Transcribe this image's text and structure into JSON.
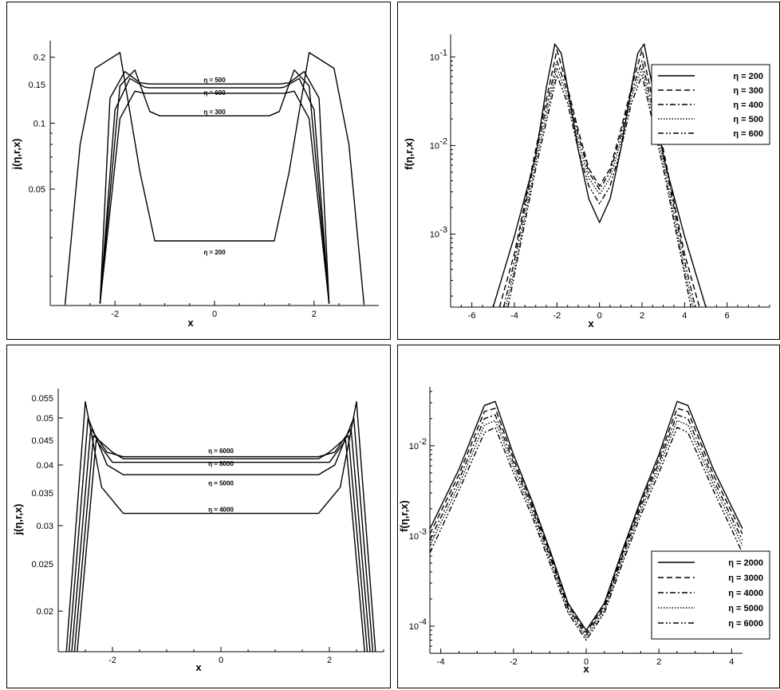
{
  "chart_data": [
    {
      "type": "line",
      "xlabel": "x",
      "ylabel": "j(η,r,x)",
      "xlim": [
        -3.3,
        3.3
      ],
      "ylim": [
        0.0147,
        0.238
      ],
      "yscale": "log",
      "xticks": [
        -2,
        0,
        2
      ],
      "xtick_labels": [
        "-2",
        "0",
        "2"
      ],
      "yticks": [
        0.05,
        0.1,
        0.15,
        0.2
      ],
      "ytick_labels": [
        "0.05",
        "0.1",
        "0.15",
        "0.2"
      ],
      "annotations": [
        {
          "text": "η = 500",
          "x": 0.0,
          "y": 0.158
        },
        {
          "text": "η = 600",
          "x": 0.0,
          "y": 0.138
        },
        {
          "text": "η = 300",
          "x": 0.0,
          "y": 0.113
        },
        {
          "text": "η = 200",
          "x": 0.0,
          "y": 0.0258
        }
      ],
      "series": [
        {
          "x": [
            -3.0,
            -2.7,
            -2.4,
            -1.9,
            -1.5,
            -1.2,
            1.2,
            1.5,
            1.9,
            2.4,
            2.7,
            3.0
          ],
          "y": [
            0.015,
            0.08,
            0.178,
            0.21,
            0.06,
            0.029,
            0.029,
            0.06,
            0.21,
            0.178,
            0.08,
            0.015
          ]
        },
        {
          "x": [
            -2.3,
            -1.9,
            -1.6,
            -1.3,
            -1.1,
            1.1,
            1.3,
            1.6,
            1.9,
            2.3
          ],
          "y": [
            0.015,
            0.148,
            0.175,
            0.113,
            0.108,
            0.108,
            0.113,
            0.175,
            0.148,
            0.015
          ]
        },
        {
          "x": [
            -2.3,
            -2.1,
            -1.8,
            -1.5,
            -1.3,
            1.3,
            1.5,
            1.8,
            2.1,
            2.3
          ],
          "y": [
            0.015,
            0.13,
            0.172,
            0.153,
            0.151,
            0.151,
            0.153,
            0.172,
            0.13,
            0.015
          ]
        },
        {
          "x": [
            -2.3,
            -2.0,
            -1.7,
            -1.4,
            -1.3,
            1.3,
            1.4,
            1.7,
            2.0,
            2.3
          ],
          "y": [
            0.015,
            0.115,
            0.16,
            0.146,
            0.145,
            0.145,
            0.146,
            0.16,
            0.115,
            0.015
          ]
        },
        {
          "x": [
            -2.3,
            -1.9,
            -1.6,
            -1.4,
            1.4,
            1.6,
            1.9,
            2.3
          ],
          "y": [
            0.015,
            0.105,
            0.14,
            0.137,
            0.137,
            0.14,
            0.105,
            0.015
          ]
        }
      ]
    },
    {
      "type": "line",
      "xlabel": "x",
      "ylabel": "f(η,r,x)",
      "xlim": [
        -7,
        8
      ],
      "ylim": [
        0.00015,
        0.18
      ],
      "yscale": "log",
      "xticks": [
        -6,
        -4,
        -2,
        0,
        2,
        4,
        6
      ],
      "xtick_labels": [
        "-6",
        "-4",
        "-2",
        "0",
        "2",
        "4",
        "6"
      ],
      "yticks": [
        0.001,
        0.01,
        0.1
      ],
      "ytick_labels": [
        "10",
        "10",
        "10"
      ],
      "ytick_exponents": [
        "-3",
        "-2",
        "-1"
      ],
      "legend_position": "top-right",
      "series": [
        {
          "name": "η = 200",
          "dash": "solid",
          "x": [
            -5.0,
            -4.0,
            -3.0,
            -2.5,
            -2.1,
            -1.8,
            -1.5,
            -1.0,
            -0.5,
            0,
            0.5,
            1.0,
            1.5,
            1.8,
            2.1,
            2.5,
            3.0,
            4.0,
            5.0
          ],
          "y": [
            0.00015,
            0.00095,
            0.0075,
            0.045,
            0.14,
            0.11,
            0.045,
            0.009,
            0.0025,
            0.00135,
            0.0025,
            0.009,
            0.045,
            0.11,
            0.14,
            0.045,
            0.0075,
            0.00095,
            0.00015
          ]
        },
        {
          "name": "η = 300",
          "dash": "dashed",
          "x": [
            -4.7,
            -4.0,
            -3.0,
            -2.0,
            -1.5,
            -1.0,
            -0.5,
            0,
            0.5,
            1.0,
            1.5,
            2.0,
            3.0,
            4.0,
            4.7
          ],
          "y": [
            0.00015,
            0.0006,
            0.009,
            0.12,
            0.045,
            0.015,
            0.0055,
            0.0035,
            0.0055,
            0.015,
            0.045,
            0.12,
            0.009,
            0.0006,
            0.00015
          ]
        },
        {
          "name": "η = 400",
          "dash": "dashdot",
          "x": [
            -4.5,
            -4.0,
            -3.0,
            -2.0,
            -1.5,
            -1.0,
            -0.5,
            0,
            0.5,
            1.0,
            1.5,
            2.0,
            3.0,
            4.0,
            4.5
          ],
          "y": [
            0.00015,
            0.0005,
            0.008,
            0.09,
            0.04,
            0.013,
            0.005,
            0.0032,
            0.005,
            0.013,
            0.04,
            0.09,
            0.008,
            0.0005,
            0.00015
          ]
        },
        {
          "name": "η = 500",
          "dash": "dotted",
          "x": [
            -4.4,
            -4.0,
            -3.0,
            -2.0,
            -1.5,
            -1.0,
            -0.5,
            0,
            0.5,
            1.0,
            1.5,
            2.0,
            3.0,
            4.0,
            4.4
          ],
          "y": [
            0.00015,
            0.0004,
            0.0065,
            0.075,
            0.035,
            0.011,
            0.0043,
            0.0028,
            0.0043,
            0.011,
            0.035,
            0.075,
            0.0065,
            0.0004,
            0.00015
          ]
        },
        {
          "name": "η = 600",
          "dash": "dashdotdot",
          "x": [
            -4.3,
            -4.0,
            -3.0,
            -2.0,
            -1.5,
            -1.0,
            -0.5,
            0,
            0.5,
            1.0,
            1.5,
            2.0,
            3.0,
            4.0,
            4.3
          ],
          "y": [
            0.00015,
            0.00035,
            0.0055,
            0.062,
            0.03,
            0.009,
            0.0035,
            0.0022,
            0.0035,
            0.009,
            0.03,
            0.062,
            0.0055,
            0.00035,
            0.00015
          ]
        }
      ]
    },
    {
      "type": "line",
      "xlabel": "x",
      "ylabel": "j(η,r,x)",
      "xlim": [
        -3.0,
        3.0
      ],
      "ylim": [
        0.0165,
        0.0575
      ],
      "yscale": "log",
      "xticks": [
        -2,
        0,
        2
      ],
      "xtick_labels": [
        "-2",
        "0",
        "2"
      ],
      "yticks": [
        0.02,
        0.025,
        0.03,
        0.035,
        0.04,
        0.045,
        0.05,
        0.055
      ],
      "ytick_labels": [
        "0.02",
        "0.025",
        "0.03",
        "0.035",
        "0.04",
        "0.045",
        "0.05",
        "0.055"
      ],
      "annotations": [
        {
          "text": "η = 6000",
          "x": 0.0,
          "y": 0.0428
        },
        {
          "text": "η = 8000",
          "x": 0.0,
          "y": 0.0403
        },
        {
          "text": "η = 5000",
          "x": 0.0,
          "y": 0.0367
        },
        {
          "text": "η = 4000",
          "x": 0.0,
          "y": 0.0324
        }
      ],
      "series": [
        {
          "x": [
            -2.85,
            -2.5,
            -2.2,
            -1.8,
            1.8,
            2.2,
            2.5,
            2.85
          ],
          "y": [
            0.0165,
            0.054,
            0.036,
            0.0318,
            0.0318,
            0.036,
            0.054,
            0.0165
          ]
        },
        {
          "x": [
            -2.8,
            -2.45,
            -2.1,
            -1.8,
            1.8,
            2.1,
            2.45,
            2.8
          ],
          "y": [
            0.0165,
            0.05,
            0.04,
            0.0382,
            0.0382,
            0.04,
            0.05,
            0.0165
          ]
        },
        {
          "x": [
            -2.75,
            -2.4,
            -2.1,
            -1.8,
            1.8,
            2.1,
            2.4,
            2.75
          ],
          "y": [
            0.0165,
            0.0475,
            0.0425,
            0.0416,
            0.0416,
            0.0425,
            0.0475,
            0.0165
          ]
        },
        {
          "x": [
            -2.7,
            -2.35,
            -2.0,
            -1.8,
            1.8,
            2.0,
            2.35,
            2.7
          ],
          "y": [
            0.0165,
            0.046,
            0.0425,
            0.0412,
            0.0412,
            0.0425,
            0.046,
            0.0165
          ]
        },
        {
          "x": [
            -2.65,
            -2.3,
            -2.0,
            2.0,
            2.3,
            2.65
          ],
          "y": [
            0.0165,
            0.045,
            0.0405,
            0.0405,
            0.045,
            0.0165
          ]
        }
      ]
    },
    {
      "type": "line",
      "xlabel": "x",
      "ylabel": "f(η,r,x)",
      "xlim": [
        -4.3,
        4.3
      ],
      "ylim": [
        5e-05,
        0.045
      ],
      "yscale": "log",
      "xticks": [
        -4,
        -2,
        0,
        2,
        4
      ],
      "xtick_labels": [
        "-4",
        "-2",
        "0",
        "2",
        "4"
      ],
      "yticks": [
        0.0001,
        0.001,
        0.01
      ],
      "ytick_labels": [
        "10",
        "10",
        "10"
      ],
      "ytick_exponents": [
        "-4",
        "-3",
        "-2"
      ],
      "legend_position": "bottom-right",
      "series": [
        {
          "name": "η = 2000",
          "dash": "solid",
          "x": [
            -4.3,
            -3.5,
            -2.8,
            -2.5,
            -2.0,
            -1.5,
            -1.0,
            -0.5,
            0,
            0.5,
            1.0,
            1.5,
            2.0,
            2.5,
            2.8,
            3.5,
            4.3
          ],
          "y": [
            0.0012,
            0.0055,
            0.028,
            0.031,
            0.008,
            0.0025,
            0.0007,
            0.00018,
            9e-05,
            0.00018,
            0.0007,
            0.0025,
            0.008,
            0.031,
            0.028,
            0.0055,
            0.0012
          ]
        },
        {
          "name": "η = 3000",
          "dash": "dashed",
          "x": [
            -4.3,
            -3.5,
            -2.8,
            -2.5,
            -2.0,
            -1.5,
            -1.0,
            -0.5,
            0,
            0.5,
            1.0,
            1.5,
            2.0,
            2.5,
            2.8,
            3.5,
            4.3
          ],
          "y": [
            0.00105,
            0.0048,
            0.024,
            0.026,
            0.0072,
            0.0023,
            0.00065,
            0.00017,
            8.5e-05,
            0.00017,
            0.00065,
            0.0023,
            0.0072,
            0.026,
            0.024,
            0.0048,
            0.00105
          ]
        },
        {
          "name": "η = 4000",
          "dash": "dashdot",
          "x": [
            -4.3,
            -3.5,
            -2.8,
            -2.5,
            -2.0,
            -1.5,
            -1.0,
            -0.5,
            0,
            0.5,
            1.0,
            1.5,
            2.0,
            2.5,
            2.8,
            3.5,
            4.3
          ],
          "y": [
            0.0009,
            0.0042,
            0.02,
            0.022,
            0.0065,
            0.0021,
            0.0006,
            0.00016,
            8e-05,
            0.00016,
            0.0006,
            0.0021,
            0.0065,
            0.022,
            0.02,
            0.0042,
            0.0009
          ]
        },
        {
          "name": "η = 5000",
          "dash": "dotted",
          "x": [
            -4.3,
            -3.5,
            -2.8,
            -2.5,
            -2.0,
            -1.5,
            -1.0,
            -0.5,
            0,
            0.5,
            1.0,
            1.5,
            2.0,
            2.5,
            2.8,
            3.5,
            4.3
          ],
          "y": [
            0.00078,
            0.0037,
            0.017,
            0.019,
            0.0058,
            0.0019,
            0.00055,
            0.00015,
            7.5e-05,
            0.00015,
            0.00055,
            0.0019,
            0.0058,
            0.019,
            0.017,
            0.0037,
            0.00078
          ]
        },
        {
          "name": "η = 6000",
          "dash": "dashdotdot",
          "x": [
            -4.3,
            -3.5,
            -2.8,
            -2.5,
            -2.0,
            -1.5,
            -1.0,
            -0.5,
            0,
            0.5,
            1.0,
            1.5,
            2.0,
            2.5,
            2.8,
            3.5,
            4.3
          ],
          "y": [
            0.00065,
            0.0032,
            0.014,
            0.016,
            0.005,
            0.0017,
            0.0005,
            0.00014,
            7e-05,
            0.00014,
            0.0005,
            0.0017,
            0.005,
            0.016,
            0.014,
            0.0032,
            0.00065
          ]
        }
      ]
    }
  ]
}
